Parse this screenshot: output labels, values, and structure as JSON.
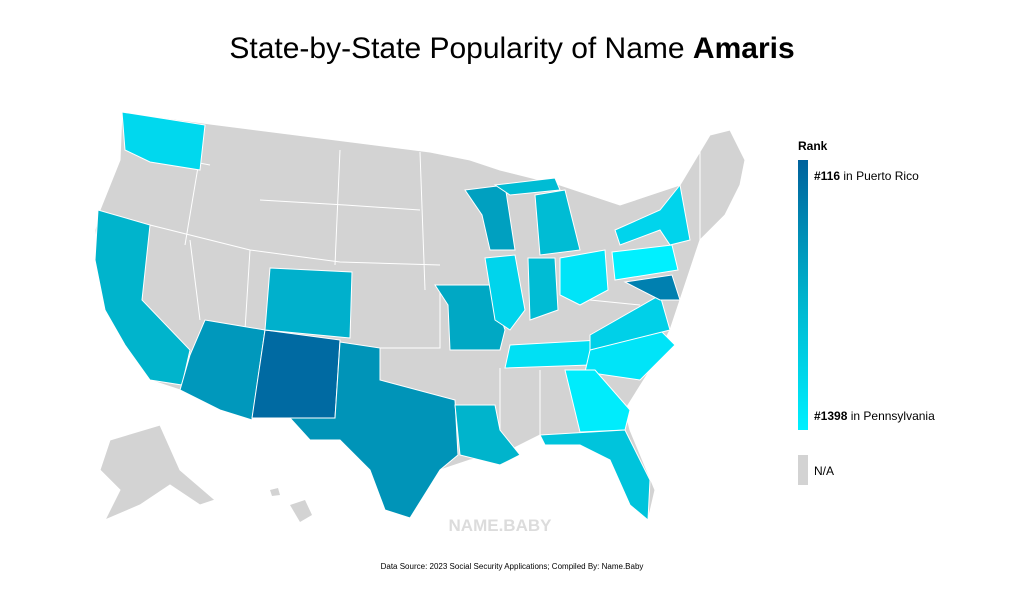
{
  "title": {
    "prefix": "State-by-State Popularity of Name",
    "name": "Amaris"
  },
  "legend": {
    "title": "Rank",
    "high": {
      "rank": "#116",
      "place": "in Puerto Rico",
      "color": "#00629c"
    },
    "low": {
      "rank": "#1398",
      "place": "in Pennsylvania",
      "color": "#00f0ff"
    },
    "na": {
      "label": "N/A",
      "color": "#d3d3d3"
    }
  },
  "watermark": "NAME.BABY",
  "source": "Data Source: 2023 Social Security Applications; Compiled By: Name.Baby"
}
